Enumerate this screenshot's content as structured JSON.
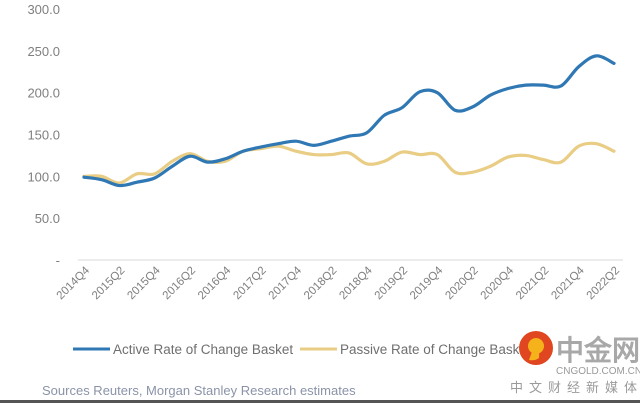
{
  "chart_data": {
    "type": "line",
    "title": "",
    "xlabel": "",
    "ylabel": "",
    "ylim": [
      0,
      300
    ],
    "yticks": [
      0,
      50,
      100,
      150,
      200,
      250,
      300
    ],
    "ytick_labels": [
      "-",
      "50.0",
      "100.0",
      "150.0",
      "200.0",
      "250.0",
      "300.0"
    ],
    "x": [
      "2014Q4",
      "2015Q1",
      "2015Q2",
      "2015Q3",
      "2015Q4",
      "2016Q1",
      "2016Q2",
      "2016Q3",
      "2016Q4",
      "2017Q1",
      "2017Q2",
      "2017Q3",
      "2017Q4",
      "2018Q1",
      "2018Q2",
      "2018Q3",
      "2018Q4",
      "2019Q1",
      "2019Q2",
      "2019Q3",
      "2019Q4",
      "2020Q1",
      "2020Q2",
      "2020Q3",
      "2020Q4",
      "2021Q1",
      "2021Q2",
      "2021Q3",
      "2021Q4",
      "2022Q1",
      "2022Q2"
    ],
    "xtick_labels": [
      "2014Q4",
      "2015Q2",
      "2015Q4",
      "2016Q2",
      "2016Q4",
      "2017Q2",
      "2017Q4",
      "2018Q2",
      "2018Q4",
      "2019Q2",
      "2019Q4",
      "2020Q2",
      "2020Q4",
      "2021Q2",
      "2021Q4",
      "2022Q2"
    ],
    "series": [
      {
        "name": "Active Rate of Change Basket",
        "color": "#2f78b4",
        "values": [
          99,
          96,
          89,
          93,
          98,
          112,
          124,
          117,
          121,
          130,
          135,
          139,
          142,
          137,
          142,
          148,
          152,
          173,
          182,
          201,
          200,
          179,
          183,
          197,
          205,
          209,
          209,
          208,
          231,
          244,
          235
        ]
      },
      {
        "name": "Passive Rate of Change Basket",
        "color": "#e9cd84",
        "values": [
          100,
          100,
          92,
          103,
          103,
          118,
          127,
          118,
          118,
          130,
          133,
          136,
          130,
          126,
          126,
          128,
          115,
          118,
          129,
          126,
          126,
          105,
          105,
          112,
          123,
          125,
          120,
          117,
          136,
          139,
          130
        ]
      }
    ],
    "grid": false,
    "legend": "bottom"
  },
  "source": "Sources Reuters, Morgan Stanley Research estimates",
  "watermark": {
    "brand": "中金网",
    "domain": "CNGOLD.COM.CN",
    "tagline": "中文财经新媒体"
  }
}
